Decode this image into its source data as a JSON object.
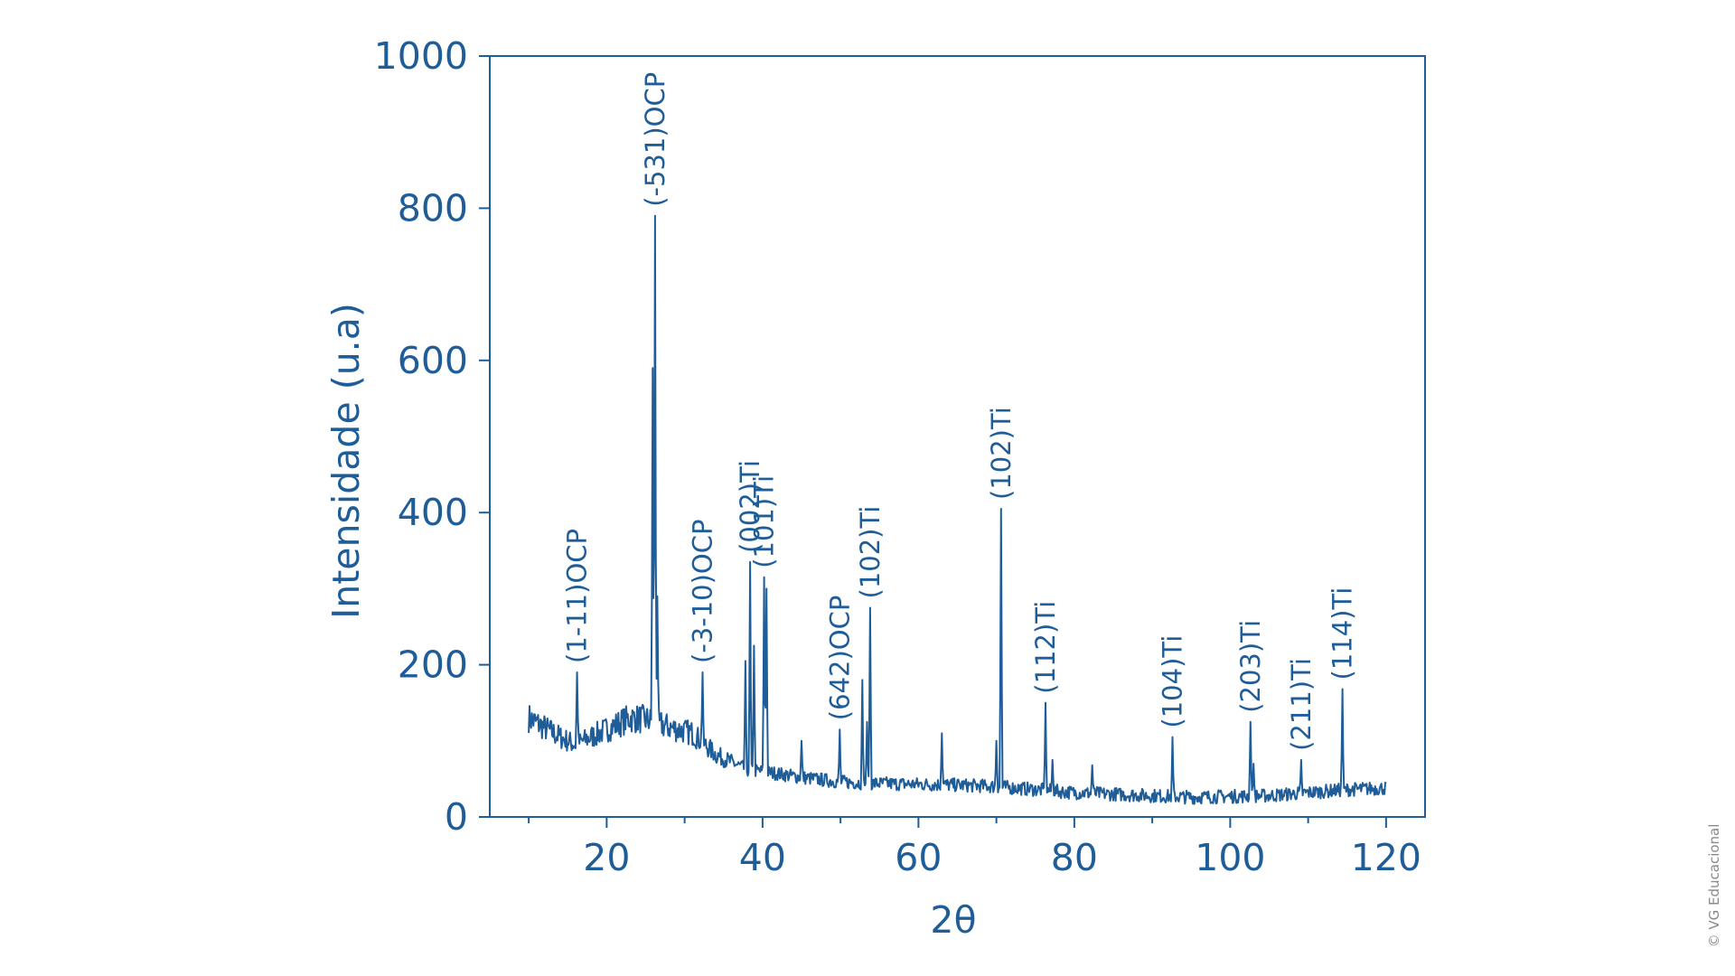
{
  "chart_data": {
    "type": "line",
    "title": "",
    "xlabel": "2θ",
    "ylabel": "Intensidade (u.a)",
    "xlim": [
      5,
      125
    ],
    "ylim": [
      0,
      1000
    ],
    "x_ticks": [
      20,
      40,
      60,
      80,
      100,
      120
    ],
    "y_ticks": [
      0,
      200,
      400,
      600,
      800,
      1000
    ],
    "x_minor_ticks": [
      10,
      30,
      50,
      70,
      90,
      110
    ],
    "grid": false,
    "colors": {
      "line": "#1f5d99",
      "axis": "#1f5d99",
      "text": "#1f5d99"
    },
    "baseline": [
      [
        10,
        130
      ],
      [
        14,
        105
      ],
      [
        16,
        95
      ],
      [
        20,
        115
      ],
      [
        23,
        130
      ],
      [
        25,
        128
      ],
      [
        28,
        118
      ],
      [
        31,
        110
      ],
      [
        34,
        82
      ],
      [
        38,
        62
      ],
      [
        40,
        60
      ],
      [
        45,
        52
      ],
      [
        50,
        46
      ],
      [
        55,
        44
      ],
      [
        60,
        43
      ],
      [
        65,
        42
      ],
      [
        70,
        40
      ],
      [
        75,
        36
      ],
      [
        80,
        32
      ],
      [
        85,
        30
      ],
      [
        90,
        28
      ],
      [
        95,
        26
      ],
      [
        100,
        27
      ],
      [
        105,
        28
      ],
      [
        110,
        32
      ],
      [
        115,
        36
      ],
      [
        120,
        38
      ]
    ],
    "peaks": [
      {
        "x": 16.2,
        "y": 190,
        "label": "(1-11)OCP"
      },
      {
        "x": 25.9,
        "y": 590
      },
      {
        "x": 26.2,
        "y": 790,
        "label": "(-531)OCP"
      },
      {
        "x": 26.5,
        "y": 290
      },
      {
        "x": 32.3,
        "y": 190,
        "label": "(-3-10)OCP"
      },
      {
        "x": 37.8,
        "y": 205
      },
      {
        "x": 38.4,
        "y": 335,
        "label": "(002)Ti"
      },
      {
        "x": 38.9,
        "y": 225
      },
      {
        "x": 40.2,
        "y": 315,
        "label": "(101)Ti"
      },
      {
        "x": 40.5,
        "y": 300
      },
      {
        "x": 45.0,
        "y": 100
      },
      {
        "x": 49.9,
        "y": 115,
        "label": "(642)OCP"
      },
      {
        "x": 52.8,
        "y": 180
      },
      {
        "x": 53.4,
        "y": 125
      },
      {
        "x": 53.8,
        "y": 275,
        "label": "(102)Ti"
      },
      {
        "x": 63.0,
        "y": 110
      },
      {
        "x": 70.0,
        "y": 100
      },
      {
        "x": 70.6,
        "y": 405,
        "label": "(102)Ti"
      },
      {
        "x": 76.3,
        "y": 150,
        "label": "(112)Ti"
      },
      {
        "x": 77.2,
        "y": 75
      },
      {
        "x": 82.3,
        "y": 68
      },
      {
        "x": 92.6,
        "y": 105,
        "label": "(104)Ti"
      },
      {
        "x": 102.6,
        "y": 125,
        "label": "(203)Ti"
      },
      {
        "x": 103.0,
        "y": 70
      },
      {
        "x": 109.1,
        "y": 75,
        "label": "(211)Ti"
      },
      {
        "x": 114.4,
        "y": 168,
        "label": "(114)Ti"
      }
    ]
  },
  "copyright": "© VG Educacional"
}
